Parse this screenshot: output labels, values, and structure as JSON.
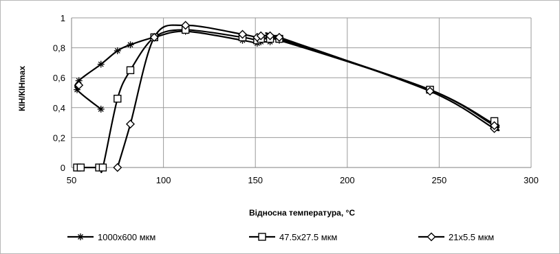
{
  "chart_data": {
    "type": "line",
    "title": "",
    "xlabel": "Відносна температура, °C",
    "ylabel": "КІН/КІНmax",
    "xlim": [
      50,
      300
    ],
    "ylim": [
      0,
      1
    ],
    "x_ticks": [
      50,
      100,
      150,
      200,
      250,
      300
    ],
    "x_tick_labels": [
      "50",
      "100",
      "150",
      "200",
      "250",
      "300"
    ],
    "y_ticks": [
      0,
      0.2,
      0.4,
      0.6,
      0.8,
      1
    ],
    "y_tick_labels": [
      "0",
      "0,2",
      "0,4",
      "0,6",
      "0,8",
      "1"
    ],
    "grid": true,
    "legend_position": "bottom",
    "line_color": "#000000",
    "series": [
      {
        "name": "1000x600 мкм",
        "marker": "star",
        "points": [
          {
            "x": 66,
            "y": 0.39
          },
          {
            "x": 53,
            "y": 0.52
          },
          {
            "x": 54,
            "y": 0.58
          },
          {
            "x": 66,
            "y": 0.69
          },
          {
            "x": 75,
            "y": 0.78
          },
          {
            "x": 82,
            "y": 0.82
          },
          {
            "x": 95,
            "y": 0.87
          },
          {
            "x": 112,
            "y": 0.91
          },
          {
            "x": 143,
            "y": 0.85
          },
          {
            "x": 151,
            "y": 0.83
          },
          {
            "x": 153,
            "y": 0.84
          },
          {
            "x": 158,
            "y": 0.84
          },
          {
            "x": 163,
            "y": 0.85
          },
          {
            "x": 245,
            "y": 0.52
          },
          {
            "x": 280,
            "y": 0.28
          },
          {
            "x": 280,
            "y": 0.3
          }
        ]
      },
      {
        "name": "47.5x27.5 мкм",
        "marker": "square",
        "points": [
          {
            "x": 53,
            "y": 0
          },
          {
            "x": 55,
            "y": 0
          },
          {
            "x": 65,
            "y": 0
          },
          {
            "x": 67,
            "y": 0
          },
          {
            "x": 75,
            "y": 0.46
          },
          {
            "x": 82,
            "y": 0.65
          },
          {
            "x": 95,
            "y": 0.87
          },
          {
            "x": 112,
            "y": 0.92
          },
          {
            "x": 143,
            "y": 0.87
          },
          {
            "x": 151,
            "y": 0.85
          },
          {
            "x": 153,
            "y": 0.86
          },
          {
            "x": 158,
            "y": 0.86
          },
          {
            "x": 163,
            "y": 0.86
          },
          {
            "x": 245,
            "y": 0.52
          },
          {
            "x": 280,
            "y": 0.29
          },
          {
            "x": 280,
            "y": 0.31
          }
        ]
      },
      {
        "name": "21x5.5 мкм",
        "marker": "diamond",
        "points": [
          {
            "x": 75,
            "y": 0
          },
          {
            "x": 82,
            "y": 0.29
          },
          {
            "x": 95,
            "y": 0.87
          },
          {
            "x": 112,
            "y": 0.95
          },
          {
            "x": 143,
            "y": 0.89
          },
          {
            "x": 151,
            "y": 0.87
          },
          {
            "x": 153,
            "y": 0.88
          },
          {
            "x": 158,
            "y": 0.88
          },
          {
            "x": 163,
            "y": 0.87
          },
          {
            "x": 245,
            "y": 0.51
          },
          {
            "x": 280,
            "y": 0.26
          },
          {
            "x": 280,
            "y": 0.28
          }
        ]
      },
      {
        "name": "",
        "marker": "diamond",
        "points": [
          {
            "x": 54,
            "y": 0.55
          }
        ]
      }
    ]
  }
}
